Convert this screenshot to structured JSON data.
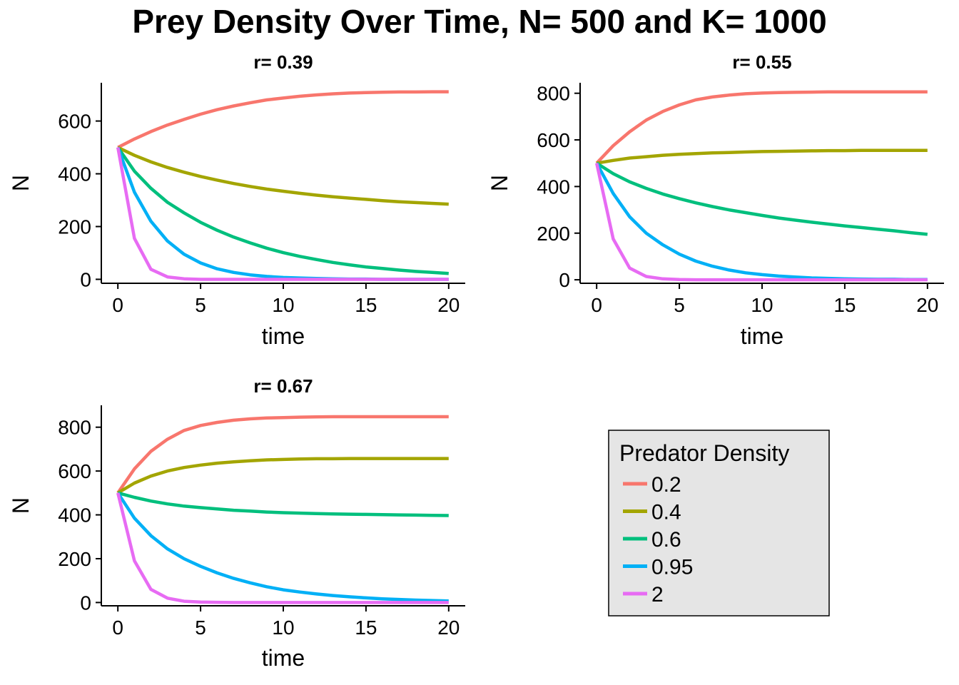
{
  "figure": {
    "title": "Prey Density Over Time, N= 500 and K= 1000"
  },
  "colors": {
    "0.2": "#F8766D",
    "0.4": "#A3A500",
    "0.6": "#00BF7D",
    "0.95": "#00B0F6",
    "2": "#E76BF3"
  },
  "legend": {
    "title": "Predator Density",
    "entries": [
      "0.2",
      "0.4",
      "0.6",
      "0.95",
      "2"
    ],
    "placement": "bottom-right panel slot"
  },
  "chart_data": [
    {
      "type": "line",
      "title": "r= 0.39",
      "xlabel": "time",
      "ylabel": "N",
      "xlim": [
        -1,
        21
      ],
      "ylim": [
        -15,
        745
      ],
      "xticks": [
        0,
        5,
        10,
        15,
        20
      ],
      "yticks": [
        0,
        200,
        400,
        600
      ],
      "x": [
        0,
        1,
        2,
        3,
        4,
        5,
        6,
        7,
        8,
        9,
        10,
        11,
        12,
        13,
        14,
        15,
        16,
        17,
        18,
        19,
        20
      ],
      "series": [
        {
          "name": "0.2",
          "values": [
            500,
            532,
            560,
            585,
            606,
            626,
            643,
            657,
            669,
            680,
            687,
            694,
            699,
            703,
            706,
            708,
            709,
            710,
            710,
            711,
            711
          ]
        },
        {
          "name": "0.4",
          "values": [
            500,
            470,
            445,
            424,
            406,
            390,
            376,
            363,
            352,
            342,
            334,
            326,
            319,
            313,
            308,
            303,
            298,
            294,
            291,
            288,
            285
          ]
        },
        {
          "name": "0.6",
          "values": [
            500,
            410,
            345,
            292,
            252,
            216,
            186,
            160,
            138,
            118,
            101,
            87,
            75,
            64,
            55,
            47,
            41,
            35,
            30,
            26,
            22
          ]
        },
        {
          "name": "0.95",
          "values": [
            500,
            330,
            220,
            145,
            95,
            62,
            40,
            26,
            17,
            11,
            7,
            5,
            3,
            2,
            1,
            1,
            0,
            0,
            0,
            0,
            0
          ]
        },
        {
          "name": "2",
          "values": [
            500,
            155,
            38,
            9,
            2,
            0,
            0,
            0,
            0,
            0,
            0,
            0,
            0,
            0,
            0,
            0,
            0,
            0,
            0,
            0,
            0
          ]
        }
      ]
    },
    {
      "type": "line",
      "title": "r= 0.55",
      "xlabel": "time",
      "ylabel": "N",
      "xlim": [
        -1,
        21
      ],
      "ylim": [
        -15,
        845
      ],
      "xticks": [
        0,
        5,
        10,
        15,
        20
      ],
      "yticks": [
        0,
        200,
        400,
        600,
        800
      ],
      "x": [
        0,
        1,
        2,
        3,
        4,
        5,
        6,
        7,
        8,
        9,
        10,
        11,
        12,
        13,
        14,
        15,
        16,
        17,
        18,
        19,
        20
      ],
      "series": [
        {
          "name": "0.2",
          "values": [
            500,
            575,
            635,
            685,
            722,
            750,
            772,
            784,
            792,
            798,
            801,
            803,
            804,
            805,
            806,
            806,
            806,
            806,
            806,
            806,
            806
          ]
        },
        {
          "name": "0.4",
          "values": [
            500,
            512,
            522,
            528,
            534,
            538,
            541,
            544,
            546,
            548,
            550,
            551,
            552,
            553,
            554,
            554,
            555,
            555,
            555,
            555,
            555
          ]
        },
        {
          "name": "0.6",
          "values": [
            500,
            455,
            420,
            392,
            368,
            348,
            330,
            314,
            300,
            288,
            276,
            265,
            256,
            247,
            239,
            231,
            224,
            217,
            210,
            202,
            195
          ]
        },
        {
          "name": "0.95",
          "values": [
            500,
            370,
            270,
            200,
            150,
            110,
            80,
            58,
            42,
            30,
            22,
            16,
            12,
            8,
            6,
            4,
            3,
            2,
            2,
            1,
            1
          ]
        },
        {
          "name": "2",
          "values": [
            500,
            175,
            50,
            14,
            4,
            1,
            0,
            0,
            0,
            0,
            0,
            0,
            0,
            0,
            0,
            0,
            0,
            0,
            0,
            0,
            0
          ]
        }
      ]
    },
    {
      "type": "line",
      "title": "r= 0.67",
      "xlabel": "time",
      "ylabel": "N",
      "xlim": [
        -1,
        21
      ],
      "ylim": [
        -15,
        900
      ],
      "xticks": [
        0,
        5,
        10,
        15,
        20
      ],
      "yticks": [
        0,
        200,
        400,
        600,
        800
      ],
      "x": [
        0,
        1,
        2,
        3,
        4,
        5,
        6,
        7,
        8,
        9,
        10,
        11,
        12,
        13,
        14,
        15,
        16,
        17,
        18,
        19,
        20
      ],
      "series": [
        {
          "name": "0.2",
          "values": [
            500,
            610,
            690,
            745,
            785,
            808,
            822,
            832,
            838,
            842,
            844,
            846,
            847,
            848,
            848,
            848,
            848,
            848,
            848,
            848,
            848
          ]
        },
        {
          "name": "0.4",
          "values": [
            500,
            545,
            577,
            600,
            616,
            627,
            636,
            642,
            647,
            651,
            653,
            655,
            656,
            656,
            657,
            657,
            657,
            657,
            657,
            657,
            657
          ]
        },
        {
          "name": "0.6",
          "values": [
            500,
            480,
            463,
            450,
            440,
            433,
            427,
            421,
            417,
            413,
            410,
            408,
            406,
            404,
            403,
            402,
            401,
            400,
            399,
            398,
            397
          ]
        },
        {
          "name": "0.95",
          "values": [
            500,
            385,
            305,
            245,
            200,
            165,
            135,
            110,
            90,
            72,
            58,
            48,
            39,
            32,
            26,
            21,
            17,
            14,
            11,
            9,
            7
          ]
        },
        {
          "name": "2",
          "values": [
            500,
            190,
            60,
            20,
            6,
            2,
            1,
            0,
            0,
            0,
            0,
            0,
            0,
            0,
            0,
            0,
            0,
            0,
            0,
            0,
            0
          ]
        }
      ]
    }
  ]
}
